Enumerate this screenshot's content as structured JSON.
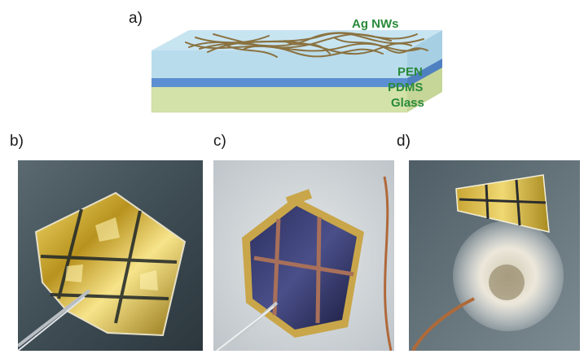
{
  "panels": {
    "a": {
      "label": "a)"
    },
    "b": {
      "label": "b)"
    },
    "c": {
      "label": "c)"
    },
    "d": {
      "label": "d)"
    }
  },
  "schematic": {
    "layers": {
      "top": "Ag NWs",
      "pen": "PEN",
      "pdms": "PDMS",
      "glass": "Glass"
    }
  },
  "colors": {
    "label_green": "#2a8a3a",
    "pen_layer": "#b9dcec",
    "pdms_layer": "#5b8fd1",
    "glass_layer": "#dbe8b6",
    "nanowire": "#8a7240",
    "gold_foil": "#d8b53a"
  }
}
